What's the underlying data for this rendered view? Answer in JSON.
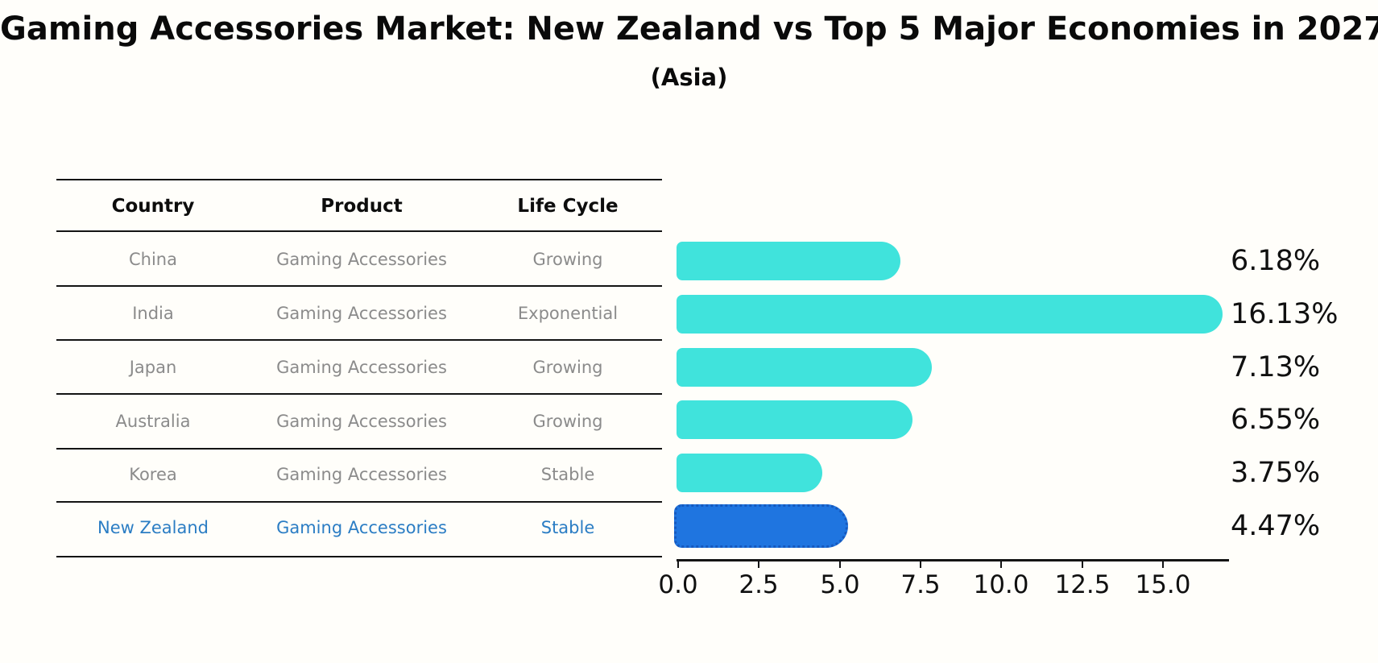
{
  "title": "Gaming Accessories Market: New Zealand vs Top 5 Major Economies in 2027",
  "subtitle": "(Asia)",
  "table": {
    "headers": [
      "Country",
      "Product",
      "Life Cycle"
    ],
    "rows": [
      {
        "country": "China",
        "product": "Gaming Accessories",
        "life_cycle": "Growing",
        "highlighted": false
      },
      {
        "country": "India",
        "product": "Gaming Accessories",
        "life_cycle": "Exponential",
        "highlighted": false
      },
      {
        "country": "Japan",
        "product": "Gaming Accessories",
        "life_cycle": "Growing",
        "highlighted": false
      },
      {
        "country": "Australia",
        "product": "Gaming Accessories",
        "life_cycle": "Growing",
        "highlighted": false
      },
      {
        "country": "Korea",
        "product": "Gaming Accessories",
        "life_cycle": "Stable",
        "highlighted": false
      },
      {
        "country": "New Zealand",
        "product": "Gaming Accessories",
        "life_cycle": "Stable",
        "highlighted": true
      }
    ]
  },
  "chart_data": {
    "type": "bar",
    "orientation": "horizontal",
    "title": "Gaming Accessories Market: New Zealand vs Top 5 Major Economies in 2027 (Asia)",
    "categories": [
      "China",
      "India",
      "Japan",
      "Australia",
      "Korea",
      "New Zealand"
    ],
    "values": [
      6.18,
      16.13,
      7.13,
      6.55,
      3.75,
      4.47
    ],
    "value_labels": [
      "6.18%",
      "16.13%",
      "7.13%",
      "6.55%",
      "3.75%",
      "4.47%"
    ],
    "x_tick_labels": [
      "0.0",
      "2.5",
      "5.0",
      "7.5",
      "10.0",
      "12.5",
      "15.0"
    ],
    "xlim": [
      0,
      17.1
    ],
    "grid": false,
    "legend": "none",
    "bar_color": "#40E3DC",
    "highlight_bar_color": "#1F75E0",
    "highlight_index": 5,
    "row_text_color": "#8b8b8b",
    "highlight_text_color": "#2b7dc4"
  }
}
